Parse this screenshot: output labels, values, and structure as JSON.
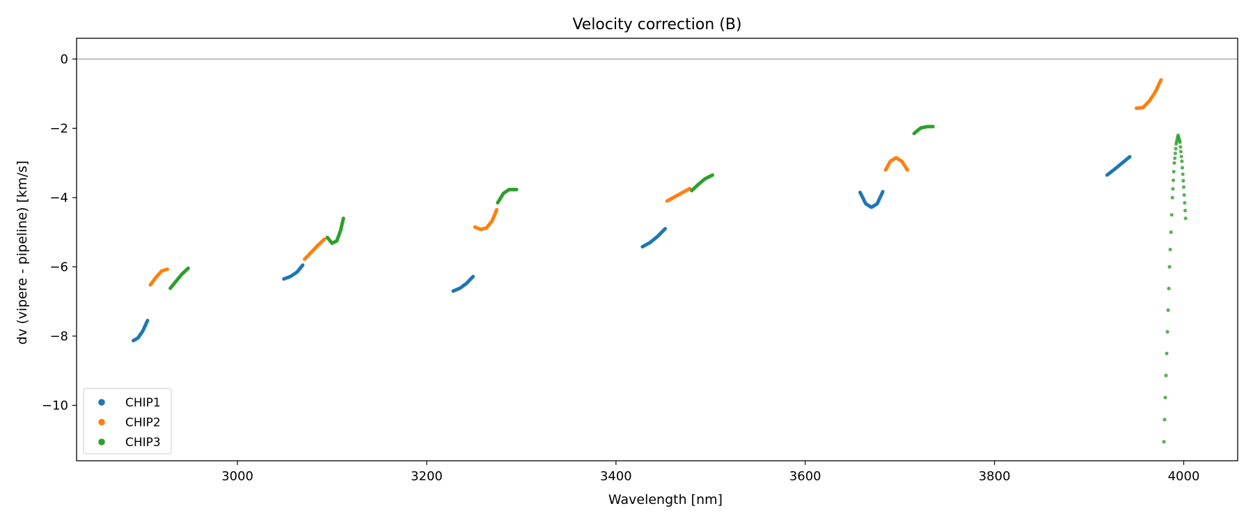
{
  "chart_data": {
    "type": "scatter",
    "title": "Velocity correction (B)",
    "xlabel": "Wavelength [nm]",
    "ylabel": "dv (vipere - pipeline) [km/s]",
    "xlim": [
      2830,
      4057
    ],
    "ylim": [
      -11.6,
      0.6
    ],
    "xticks": [
      3000,
      3200,
      3400,
      3600,
      3800,
      4000
    ],
    "yticks": [
      0,
      -2,
      -4,
      -6,
      -8,
      -10
    ],
    "ytick_labels": [
      "0",
      "−2",
      "−4",
      "−6",
      "−8",
      "−10"
    ],
    "reference_line_y": 0,
    "legend_position": "lower-left",
    "series": [
      {
        "name": "CHIP1",
        "color": "#1f77b4",
        "segments": [
          {
            "x": [
              2890,
              2895,
              2900,
              2905
            ],
            "y": [
              -8.13,
              -8.05,
              -7.85,
              -7.55
            ]
          },
          {
            "x": [
              3049,
              3056,
              3063,
              3069
            ],
            "y": [
              -6.35,
              -6.28,
              -6.15,
              -5.95
            ]
          },
          {
            "x": [
              3228,
              3235,
              3242,
              3249
            ],
            "y": [
              -6.7,
              -6.62,
              -6.48,
              -6.28
            ]
          },
          {
            "x": [
              3428,
              3436,
              3444,
              3452
            ],
            "y": [
              -5.42,
              -5.3,
              -5.12,
              -4.9
            ]
          },
          {
            "x": [
              3658,
              3664,
              3670,
              3676,
              3682
            ],
            "y": [
              -3.85,
              -4.18,
              -4.28,
              -4.18,
              -3.83
            ]
          },
          {
            "x": [
              3919,
              3927,
              3935,
              3943
            ],
            "y": [
              -3.35,
              -3.18,
              -3.0,
              -2.82
            ]
          }
        ]
      },
      {
        "name": "CHIP2",
        "color": "#ff7f0e",
        "segments": [
          {
            "x": [
              2908,
              2914,
              2920,
              2926
            ],
            "y": [
              -6.52,
              -6.3,
              -6.12,
              -6.07
            ]
          },
          {
            "x": [
              3071,
              3078,
              3085,
              3092
            ],
            "y": [
              -5.78,
              -5.58,
              -5.38,
              -5.2
            ]
          },
          {
            "x": [
              3251,
              3257,
              3263,
              3269,
              3274
            ],
            "y": [
              -4.85,
              -4.92,
              -4.88,
              -4.68,
              -4.35
            ]
          },
          {
            "x": [
              3454,
              3462,
              3470,
              3478
            ],
            "y": [
              -4.1,
              -3.98,
              -3.86,
              -3.74
            ]
          },
          {
            "x": [
              3685,
              3690,
              3696,
              3702,
              3708
            ],
            "y": [
              -3.2,
              -2.95,
              -2.85,
              -2.95,
              -3.2
            ]
          },
          {
            "x": [
              3950,
              3957,
              3964,
              3970,
              3976
            ],
            "y": [
              -1.42,
              -1.4,
              -1.2,
              -0.95,
              -0.6
            ]
          }
        ]
      },
      {
        "name": "CHIP3",
        "color": "#2ca02c",
        "segments": [
          {
            "x": [
              2929,
              2935,
              2941,
              2948
            ],
            "y": [
              -6.62,
              -6.42,
              -6.22,
              -6.04
            ]
          },
          {
            "x": [
              3095,
              3100,
              3105,
              3109,
              3112
            ],
            "y": [
              -5.15,
              -5.32,
              -5.25,
              -4.95,
              -4.6
            ]
          },
          {
            "x": [
              3275,
              3281,
              3287,
              3295
            ],
            "y": [
              -4.15,
              -3.88,
              -3.77,
              -3.77
            ]
          },
          {
            "x": [
              3480,
              3487,
              3494,
              3502
            ],
            "y": [
              -3.8,
              -3.62,
              -3.46,
              -3.35
            ]
          },
          {
            "x": [
              3715,
              3722,
              3729,
              3735
            ],
            "y": [
              -2.15,
              -1.99,
              -1.95,
              -1.95
            ]
          },
          {
            "x": [
              3979,
              3982,
              3985,
              3988,
              3990,
              3992,
              3994,
              3996,
              3998,
              4000,
              4002
            ],
            "y": [
              -11.05,
              -8.5,
              -6.0,
              -4.0,
              -3.0,
              -2.45,
              -2.2,
              -2.4,
              -2.95,
              -3.7,
              -4.6
            ]
          }
        ]
      }
    ]
  }
}
